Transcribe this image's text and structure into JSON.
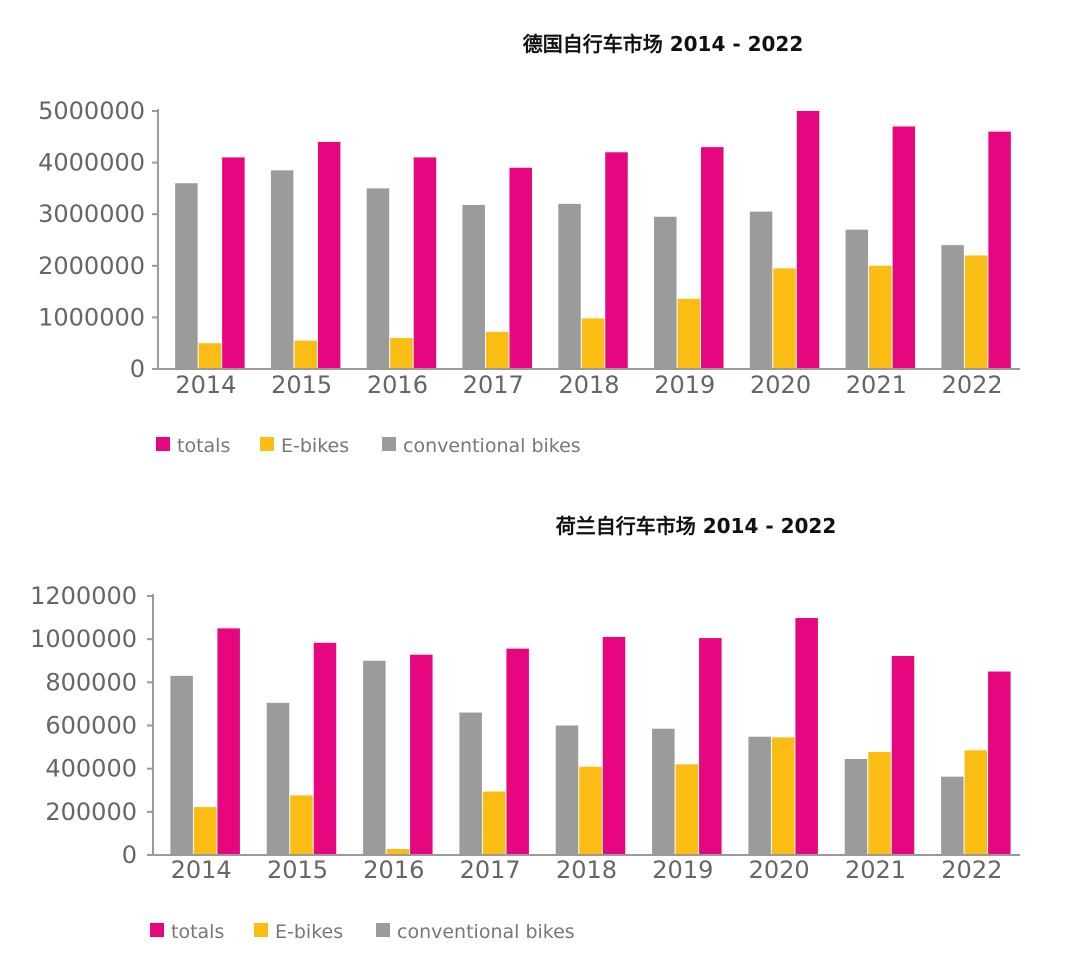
{
  "colors": {
    "totals": "#e6067f",
    "ebikes": "#fbbd14",
    "conventional": "#9b9b9b",
    "axis": "#9a9a9a",
    "tick_text": "#666666",
    "legend_text": "#777777"
  },
  "chart_data": [
    {
      "type": "bar",
      "title": "德国自行车市场   2014 - 2022",
      "categories": [
        "2014",
        "2015",
        "2016",
        "2017",
        "2018",
        "2019",
        "2020",
        "2021",
        "2022"
      ],
      "series": [
        {
          "name": "conventional bikes",
          "key": "conventional",
          "values": [
            3600000,
            3850000,
            3500000,
            3180000,
            3200000,
            2950000,
            3050000,
            2700000,
            2400000
          ]
        },
        {
          "name": "E-bikes",
          "key": "ebikes",
          "values": [
            500000,
            550000,
            600000,
            720000,
            980000,
            1360000,
            1950000,
            2000000,
            2200000
          ]
        },
        {
          "name": "totals",
          "key": "totals",
          "values": [
            4100000,
            4400000,
            4100000,
            3900000,
            4200000,
            4300000,
            5000000,
            4700000,
            4600000
          ]
        }
      ],
      "legend_order": [
        "totals",
        "E-bikes",
        "conventional bikes"
      ],
      "yticks": [
        "0",
        "1000000",
        "2000000",
        "3000000",
        "4000000",
        "5000000"
      ],
      "ylim": [
        0,
        5000000
      ],
      "xlabel": "",
      "ylabel": ""
    },
    {
      "type": "bar",
      "title": "荷兰自行车市场   2014 - 2022",
      "categories": [
        "2014",
        "2015",
        "2016",
        "2017",
        "2018",
        "2019",
        "2020",
        "2021",
        "2022"
      ],
      "series": [
        {
          "name": "conventional bikes",
          "key": "conventional",
          "values": [
            830000,
            705000,
            900000,
            660000,
            600000,
            585000,
            548000,
            445000,
            363000
          ]
        },
        {
          "name": "E-bikes",
          "key": "ebikes",
          "values": [
            222000,
            276000,
            28000,
            294000,
            409000,
            420000,
            545000,
            477000,
            485000
          ]
        },
        {
          "name": "totals",
          "key": "totals",
          "values": [
            1050000,
            983000,
            928000,
            956000,
            1010000,
            1005000,
            1098000,
            922000,
            850000
          ]
        }
      ],
      "legend_order": [
        "totals",
        "E-bikes",
        "conventional bikes"
      ],
      "yticks": [
        "0",
        "200000",
        "400000",
        "600000",
        "800000",
        "1000000",
        "1200000"
      ],
      "ylim": [
        0,
        1200000
      ],
      "xlabel": "",
      "ylabel": ""
    }
  ]
}
